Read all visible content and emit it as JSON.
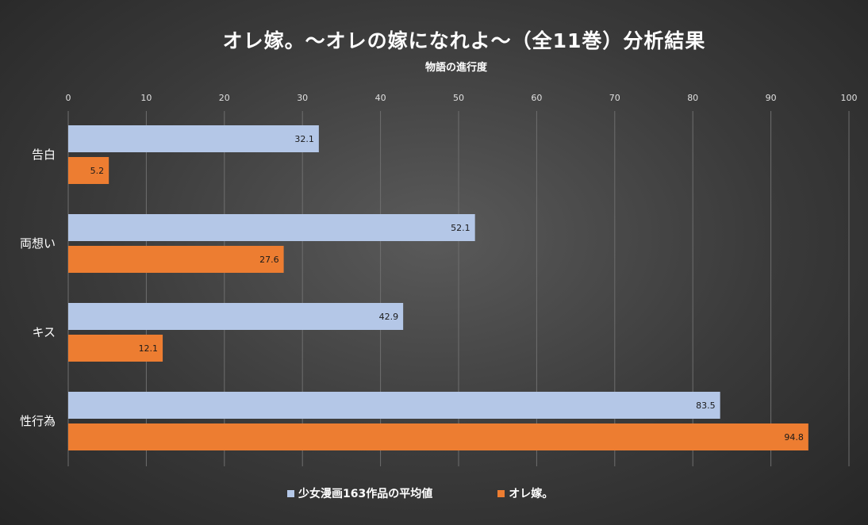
{
  "chart_data": {
    "type": "bar",
    "orientation": "horizontal",
    "title": "オレ嫁。〜オレの嫁になれよ〜（全11巻）分析結果",
    "subtitle": "物語の進行度",
    "categories": [
      "告白",
      "両想い",
      "キス",
      "性行為"
    ],
    "series": [
      {
        "name": "少女漫画163作品の平均値",
        "values": [
          32.1,
          52.1,
          42.9,
          83.5
        ],
        "color": "#b4c7e7"
      },
      {
        "name": "オレ嫁。",
        "values": [
          5.2,
          27.6,
          12.1,
          94.8
        ],
        "color": "#ed7d31"
      }
    ],
    "xlim": [
      0,
      100
    ],
    "xticks": [
      "0",
      "10",
      "20",
      "30",
      "40",
      "50",
      "60",
      "70",
      "80",
      "90",
      "100"
    ],
    "grid": true,
    "legend_position": "bottom",
    "data_labels": true
  }
}
